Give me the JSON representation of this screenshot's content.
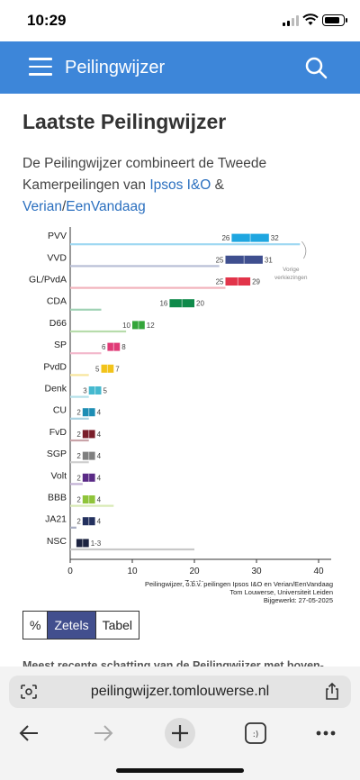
{
  "status": {
    "time": "10:29"
  },
  "nav": {
    "title": "Peilingwijzer"
  },
  "page": {
    "heading": "Laatste Peilingwijzer",
    "intro_text": "De Peilingwijzer combineert de Tweede Kamerpeilingen van ",
    "link_ipsos": "Ipsos I&O",
    "amp": " & ",
    "link_verian": "Verian",
    "slash": "/",
    "link_eenvandaag": "EenVandaag"
  },
  "chart_data": {
    "type": "bar",
    "xlabel": "Zetels",
    "xlim": [
      0,
      40
    ],
    "xticks": [
      0,
      10,
      20,
      30,
      40
    ],
    "annotation": "Vorige verkiezingen",
    "parties": [
      {
        "name": "PVV",
        "low": 26,
        "high": 32,
        "low_label": "26",
        "high_label": "32",
        "previous": 37,
        "color": "#1fa6e0",
        "prev_color": "#9fd8f2"
      },
      {
        "name": "VVD",
        "low": 25,
        "high": 31,
        "low_label": "25",
        "high_label": "31",
        "previous": 24,
        "color": "#3f4f8f",
        "prev_color": "#b9bfd6"
      },
      {
        "name": "GL/PvdA",
        "low": 25,
        "high": 29,
        "low_label": "25",
        "high_label": "29",
        "previous": 25,
        "color": "#e2344a",
        "prev_color": "#f2b3bc"
      },
      {
        "name": "CDA",
        "low": 16,
        "high": 20,
        "low_label": "16",
        "high_label": "20",
        "previous": 5,
        "color": "#0f8a4a",
        "prev_color": "#9fd1b4"
      },
      {
        "name": "D66",
        "low": 10,
        "high": 12,
        "low_label": "10",
        "high_label": "12",
        "previous": 9,
        "color": "#34a53a",
        "prev_color": "#b7dcab"
      },
      {
        "name": "SP",
        "low": 6,
        "high": 8,
        "low_label": "6",
        "high_label": "8",
        "previous": 5,
        "color": "#e03a76",
        "prev_color": "#f3b8cc"
      },
      {
        "name": "PvdD",
        "low": 5,
        "high": 7,
        "low_label": "5",
        "high_label": "7",
        "previous": 3,
        "color": "#f2c31a",
        "prev_color": "#f7e59c"
      },
      {
        "name": "Denk",
        "low": 3,
        "high": 5,
        "low_label": "3",
        "high_label": "5",
        "previous": 3,
        "color": "#45b9cf",
        "prev_color": "#b3e0ea"
      },
      {
        "name": "CU",
        "low": 2,
        "high": 4,
        "low_label": "2",
        "high_label": "4",
        "previous": 3,
        "color": "#1d8db4",
        "prev_color": "#a9d2e2"
      },
      {
        "name": "FvD",
        "low": 2,
        "high": 4,
        "low_label": "2",
        "high_label": "4",
        "previous": 3,
        "color": "#7a1e2a",
        "prev_color": "#c9a3a8"
      },
      {
        "name": "SGP",
        "low": 2,
        "high": 4,
        "low_label": "2",
        "high_label": "4",
        "previous": 3,
        "color": "#7f7f7f",
        "prev_color": "#cfcfcf"
      },
      {
        "name": "Volt",
        "low": 2,
        "high": 4,
        "low_label": "2",
        "high_label": "4",
        "previous": 2,
        "color": "#5a2a86",
        "prev_color": "#c2b0d4"
      },
      {
        "name": "BBB",
        "low": 2,
        "high": 4,
        "low_label": "2",
        "high_label": "4",
        "previous": 7,
        "color": "#8fc43a",
        "prev_color": "#d8eab4"
      },
      {
        "name": "JA21",
        "low": 2,
        "high": 4,
        "low_label": "2",
        "high_label": "4",
        "previous": 1,
        "color": "#23305e",
        "prev_color": "#a8adc2"
      },
      {
        "name": "NSC",
        "low": 1,
        "high": 3,
        "low_label": "",
        "high_label": "1-3",
        "previous": 20,
        "color": "#1c2340",
        "prev_color": "#c8c8c8"
      }
    ]
  },
  "source": {
    "line1": "Peilingwijzer, o.b.v. peilingen Ipsos I&O en Verian/EenVandaag",
    "line2": "Tom Louwerse, Universiteit Leiden",
    "line3": "Bijgewerkt: 27-05-2025"
  },
  "toggle": {
    "percent": "%",
    "seats": "Zetels",
    "table": "Tabel"
  },
  "teaser": "Meest recente schatting van de Peilingwijzer met boven-",
  "browser": {
    "url": "peilingwijzer.tomlouwerse.nl"
  },
  "colors": {
    "nav_bg": "#3d86d9",
    "link": "#2a6fbf",
    "toggle_selected": "#424f8e"
  }
}
